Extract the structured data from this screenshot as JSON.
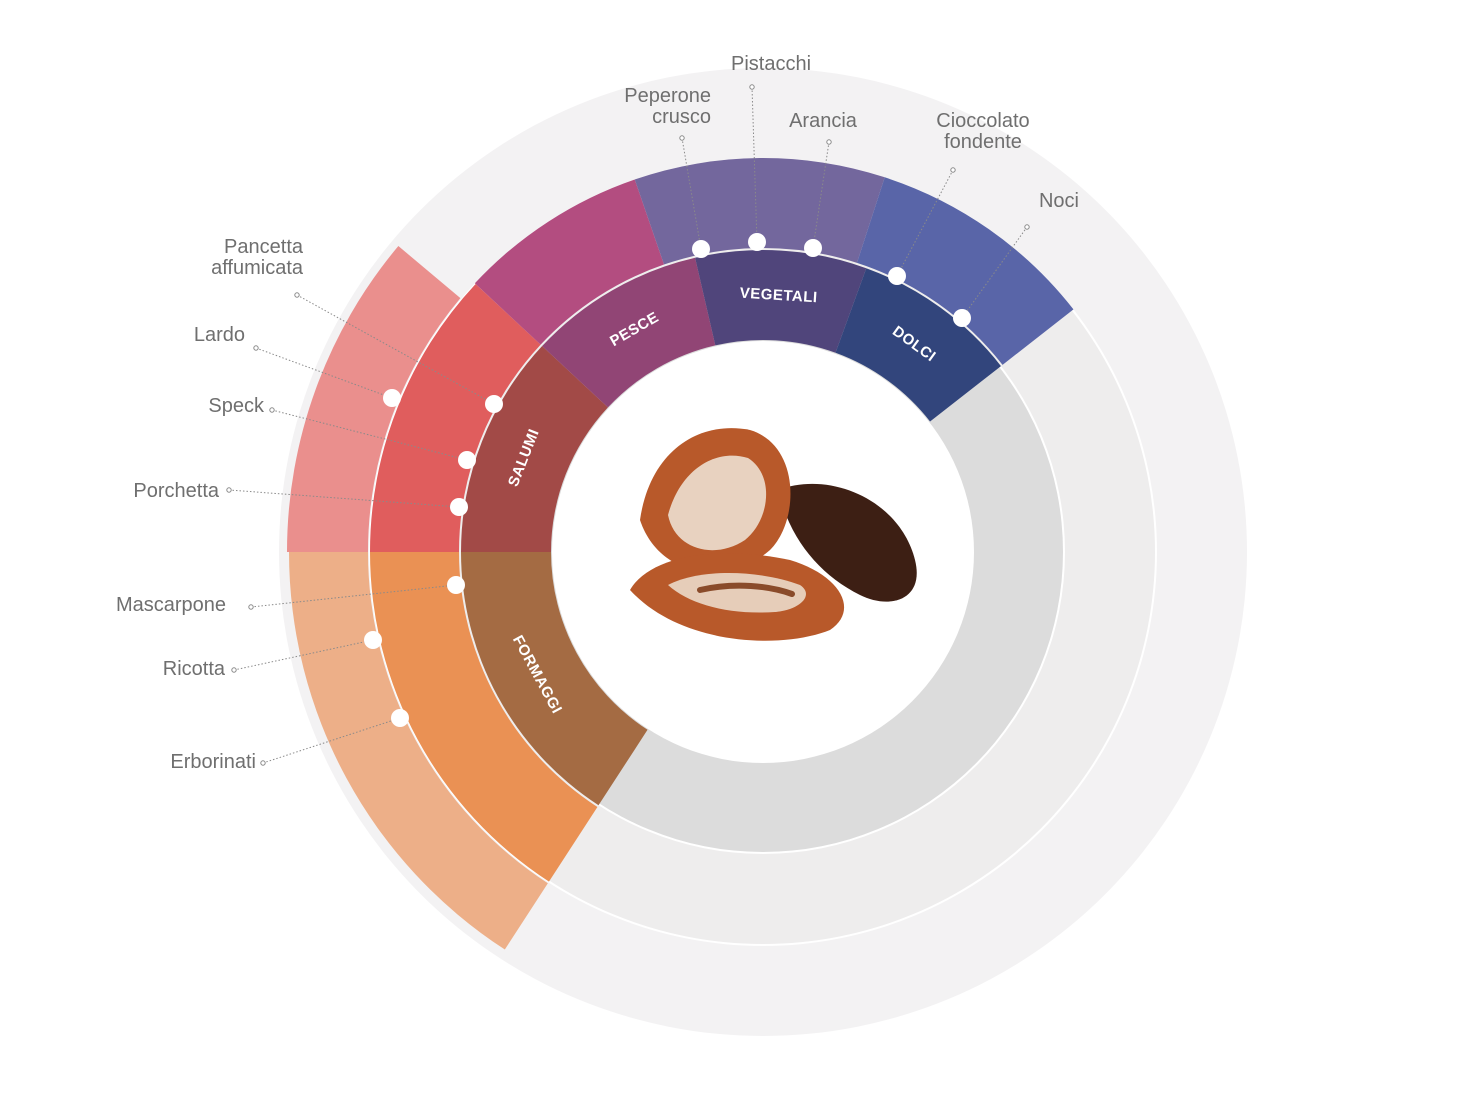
{
  "center_image": "dates-fruit",
  "colors": {
    "background_rings": [
      "#f3f2f3",
      "#eeeded",
      "#dcdcdc"
    ],
    "ring_separator": "#ffffff",
    "leader_line": "#8a8a8a",
    "food_label": "#6f6f6f",
    "date_flesh": "#b8592a",
    "date_skin": "#3d1f14"
  },
  "categories": [
    {
      "id": "formaggi",
      "label": "FORMAGGI",
      "colors": {
        "inner": "#a46b43",
        "middle": "#ea9154",
        "outer": "#edaf88"
      },
      "foods": [
        "Mascarpone",
        "Ricotta",
        "Erborinati"
      ]
    },
    {
      "id": "salumi",
      "label": "SALUMI",
      "colors": {
        "inner": "#a24a47",
        "middle": "#e05d5d",
        "outer": "#ea8f8d"
      },
      "foods": [
        "Pancetta affumicata",
        "Lardo",
        "Speck",
        "Porchetta"
      ]
    },
    {
      "id": "pesce",
      "label": "PESCE",
      "colors": {
        "inner": "#914575",
        "middle": "#b34d80",
        "outer": "#b34d80"
      },
      "foods": []
    },
    {
      "id": "vegetali",
      "label": "VEGETALI",
      "colors": {
        "inner": "#50457b",
        "middle": "#73679d",
        "outer": "#73679d"
      },
      "foods": [
        "Peperone crusco",
        "Pistacchi",
        "Arancia"
      ]
    },
    {
      "id": "dolci",
      "label": "DOLCI",
      "colors": {
        "inner": "#32457c",
        "middle": "#5965a8",
        "outer": "#5965a8"
      },
      "foods": [
        "Cioccolato fondente",
        "Noci"
      ]
    }
  ],
  "food_labels": [
    {
      "name": "Pancetta affumicata",
      "lines": [
        "Pancetta",
        "affumicata"
      ],
      "category": "salumi"
    },
    {
      "name": "Lardo",
      "lines": [
        "Lardo"
      ],
      "category": "salumi"
    },
    {
      "name": "Speck",
      "lines": [
        "Speck"
      ],
      "category": "salumi"
    },
    {
      "name": "Porchetta",
      "lines": [
        "Porchetta"
      ],
      "category": "salumi"
    },
    {
      "name": "Mascarpone",
      "lines": [
        "Mascarpone"
      ],
      "category": "formaggi"
    },
    {
      "name": "Ricotta",
      "lines": [
        "Ricotta"
      ],
      "category": "formaggi"
    },
    {
      "name": "Erborinati",
      "lines": [
        "Erborinati"
      ],
      "category": "formaggi"
    },
    {
      "name": "Peperone crusco",
      "lines": [
        "Peperone",
        "crusco"
      ],
      "category": "vegetali"
    },
    {
      "name": "Pistacchi",
      "lines": [
        "Pistacchi"
      ],
      "category": "vegetali"
    },
    {
      "name": "Arancia",
      "lines": [
        "Arancia"
      ],
      "category": "vegetali"
    },
    {
      "name": "Cioccolato fondente",
      "lines": [
        "Cioccolato",
        "fondente"
      ],
      "category": "dolci"
    },
    {
      "name": "Noci",
      "lines": [
        "Noci"
      ],
      "category": "dolci"
    }
  ]
}
